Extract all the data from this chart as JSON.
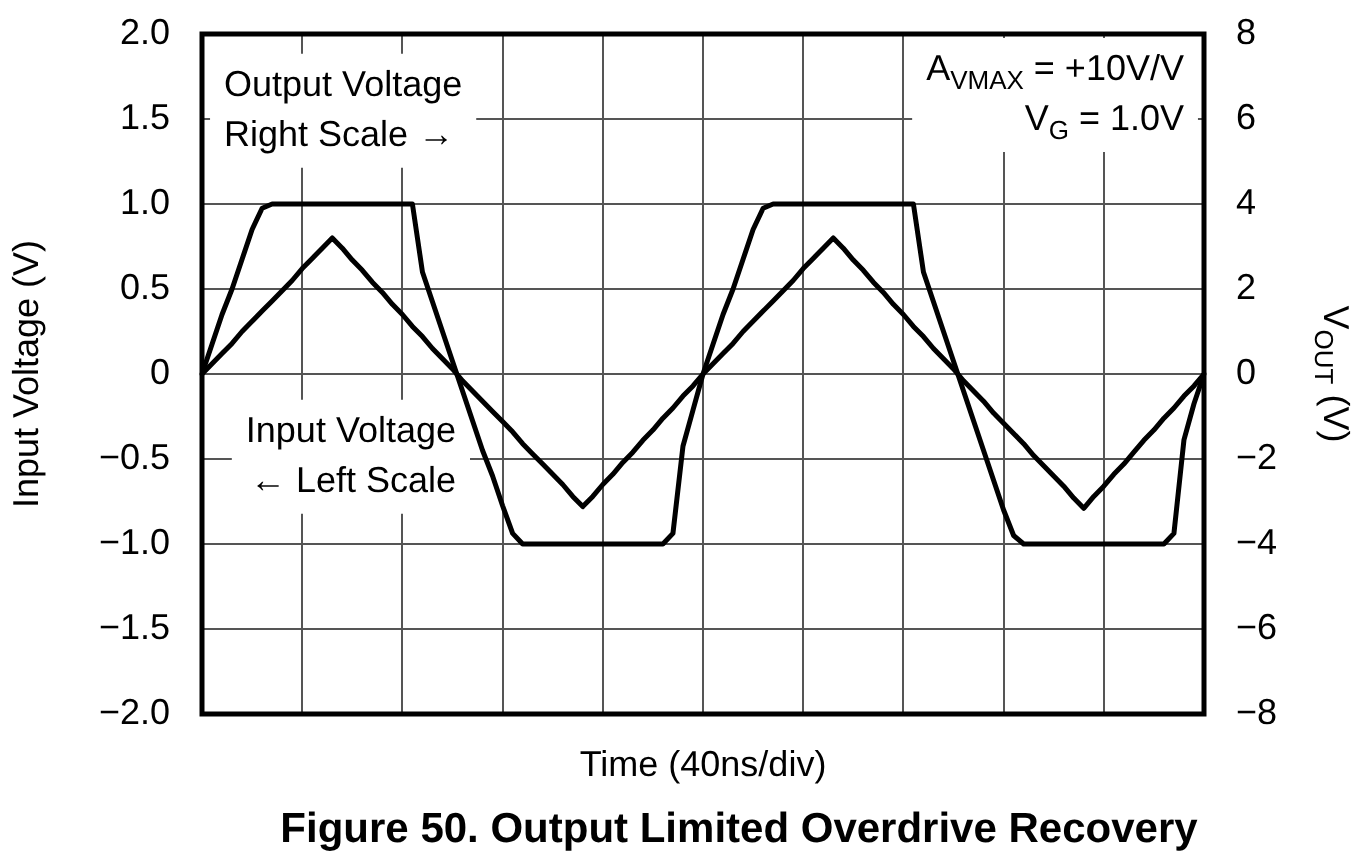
{
  "chart_data": {
    "type": "line",
    "title": "Figure 50. Output Limited Overdrive Recovery",
    "xlabel": "Time (40ns/div)",
    "ylabel": "Input Voltage (V)",
    "y2label": "V$_{OUT}$ (V)",
    "annotations": [
      "Output Voltage\nRight Scale →",
      "Input Voltage\n← Left Scale",
      "A$_{VMAX}$ = +10V/V\nV$_{G}$ = 1.0V"
    ],
    "categories": [
      null,
      null,
      null,
      null,
      null,
      null,
      null,
      null,
      null,
      null,
      null,
      null,
      null,
      null,
      null,
      null,
      null,
      null,
      null,
      null,
      null,
      null,
      null,
      null,
      null,
      null,
      null,
      null,
      null,
      null,
      null,
      null,
      null,
      null,
      null,
      null,
      null,
      null,
      null,
      null,
      null,
      null,
      null,
      null,
      null,
      null,
      null,
      null,
      null,
      null,
      null,
      null,
      null,
      null,
      null,
      null,
      null,
      null,
      null,
      null,
      null,
      null,
      null,
      null,
      null,
      null,
      null,
      null,
      null,
      null,
      null,
      null,
      null,
      null,
      null,
      null,
      null,
      null,
      null,
      null,
      null,
      null,
      null,
      null,
      null,
      null,
      null,
      null,
      null,
      null,
      null,
      null,
      null,
      null,
      null,
      null,
      null,
      null,
      null,
      null,
      null
    ],
    "series": [
      {
        "color": "#000000",
        "values": [
          0,
          0.06,
          0.12,
          0.18,
          0.25,
          0.31,
          0.37,
          0.43,
          0.49,
          0.55,
          0.62,
          0.68,
          0.74,
          0.8,
          0.74,
          0.67,
          0.61,
          0.54,
          0.48,
          0.41,
          0.35,
          0.28,
          0.22,
          0.15,
          0.09,
          0.03,
          -0.04,
          -0.1,
          -0.16,
          -0.22,
          -0.28,
          -0.34,
          -0.41,
          -0.47,
          -0.53,
          -0.59,
          -0.65,
          -0.72,
          -0.78,
          -0.72,
          -0.65,
          -0.59,
          -0.52,
          -0.46,
          -0.39,
          -0.33,
          -0.26,
          -0.2,
          -0.13,
          -0.07,
          0,
          0.06,
          0.12,
          0.18,
          0.25,
          0.31,
          0.37,
          0.43,
          0.49,
          0.55,
          0.62,
          0.68,
          0.74,
          0.8,
          0.74,
          0.67,
          0.61,
          0.54,
          0.48,
          0.41,
          0.35,
          0.28,
          0.22,
          0.15,
          0.09,
          0.03,
          -0.04,
          -0.1,
          -0.16,
          -0.23,
          -0.29,
          -0.35,
          -0.41,
          -0.48,
          -0.54,
          -0.6,
          -0.66,
          -0.73,
          -0.79,
          -0.72,
          -0.66,
          -0.59,
          -0.53,
          -0.46,
          -0.39,
          -0.33,
          -0.26,
          -0.2,
          -0.13,
          -0.07,
          0
        ]
      },
      {
        "color": "#000000",
        "axis": "y2",
        "values": [
          0,
          0.7,
          1.4,
          2,
          2.7,
          3.4,
          3.9,
          4,
          4,
          4,
          4,
          4,
          4,
          4,
          4,
          4,
          4,
          4,
          4,
          4,
          4,
          4,
          2.4,
          1.7,
          1,
          0.3,
          -0.4,
          -1.1,
          -1.8,
          -2.4,
          -3.1,
          -3.75,
          -4,
          -4,
          -4,
          -4,
          -4,
          -4,
          -4,
          -4,
          -4,
          -4,
          -4,
          -4,
          -4,
          -4,
          -4,
          -3.75,
          -1.7,
          -0.85,
          0,
          0.7,
          1.4,
          2,
          2.7,
          3.4,
          3.9,
          4,
          4,
          4,
          4,
          4,
          4,
          4,
          4,
          4,
          4,
          4,
          4,
          4,
          4,
          4,
          2.4,
          1.7,
          1,
          0.3,
          -0.4,
          -1.1,
          -1.8,
          -2.5,
          -3.2,
          -3.8,
          -4,
          -4,
          -4,
          -4,
          -4,
          -4,
          -4,
          -4,
          -4,
          -4,
          -4,
          -4,
          -4,
          -4,
          -4,
          -3.75,
          -1.55,
          -0.7,
          0
        ]
      }
    ],
    "ylim": [
      -2,
      2
    ],
    "yticks": [
      {
        "value": -2,
        "label": "−2.0"
      },
      {
        "value": -1.5,
        "label": "−1.5"
      },
      {
        "value": -1,
        "label": "−1.0"
      },
      {
        "value": -0.5,
        "label": "−0.5"
      },
      0,
      {
        "value": 0.5,
        "label": "0.5"
      },
      {
        "value": 1,
        "label": "1.0"
      },
      {
        "value": 1.5,
        "label": "1.5"
      },
      {
        "value": 2,
        "label": "2.0"
      }
    ],
    "y2lim": [
      -8,
      8
    ],
    "y2ticks": [
      {
        "value": -8,
        "label": "−8"
      },
      {
        "value": -6,
        "label": "−6"
      },
      {
        "value": -4,
        "label": "−4"
      },
      {
        "value": -2,
        "label": "−2"
      },
      0,
      2,
      4,
      6,
      8
    ],
    "grid": true,
    "legend": false
  }
}
